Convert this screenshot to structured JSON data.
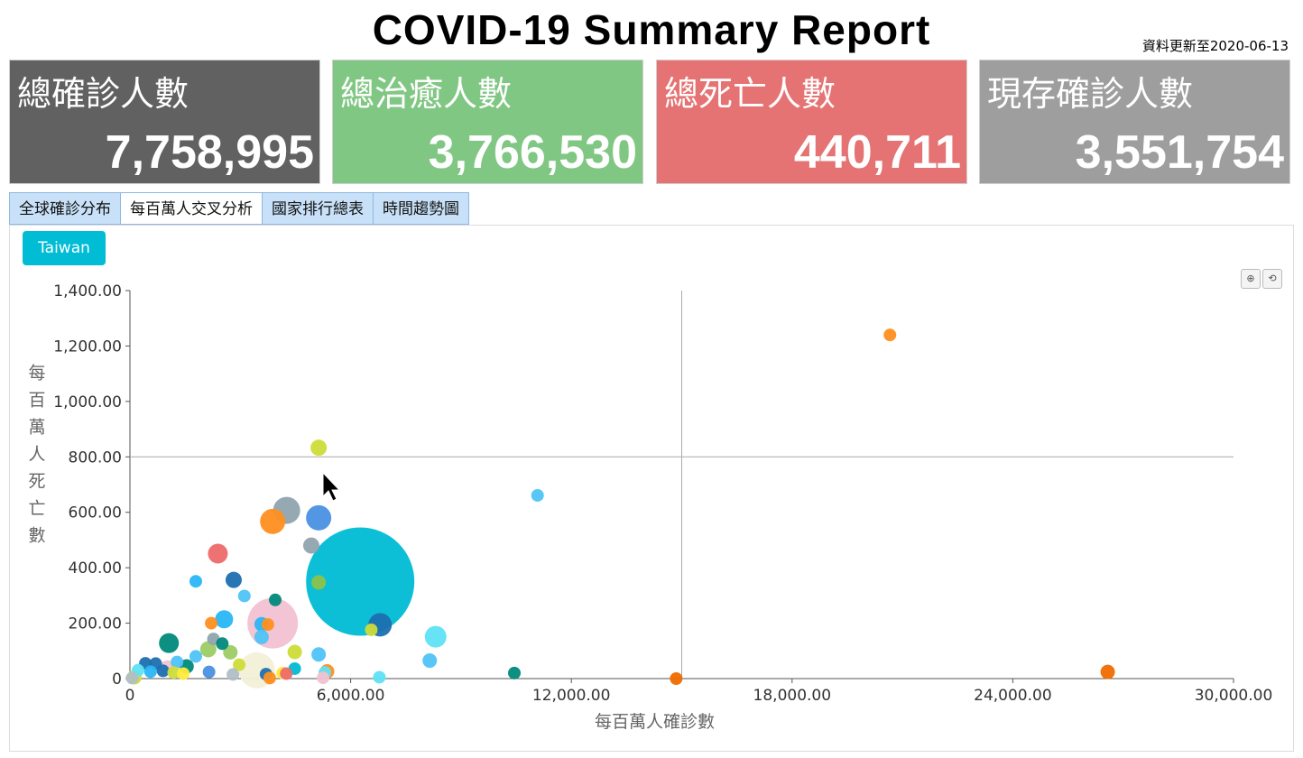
{
  "header": {
    "title": "COVID-19 Summary Report",
    "updated": "資料更新至2020-06-13"
  },
  "cards": [
    {
      "label": "總確診人數",
      "value": "7,758,995",
      "color": "#616161"
    },
    {
      "label": "總治癒人數",
      "value": "3,766,530",
      "color": "#81c784"
    },
    {
      "label": "總死亡人數",
      "value": "440,711",
      "color": "#e57373"
    },
    {
      "label": "現存確診人數",
      "value": "3,551,754",
      "color": "#9e9e9e"
    }
  ],
  "tabs": [
    "全球確診分布",
    "每百萬人交叉分析",
    "國家排行總表",
    "時間趨勢圖"
  ],
  "active_tab": 1,
  "panel": {
    "country_button": "Taiwan",
    "zoom_icons": [
      "zoom-in-icon",
      "zoom-reset-icon"
    ]
  },
  "chart_data": {
    "type": "scatter",
    "xlabel": "每百萬人確診數",
    "ylabel": "每百萬人死亡數",
    "xlim": [
      0,
      30000
    ],
    "ylim": [
      0,
      1400
    ],
    "xticks": [
      0,
      6000,
      12000,
      18000,
      24000,
      30000
    ],
    "xtick_labels": [
      "0",
      "6,000.00",
      "12,000.00",
      "18,000.00",
      "24,000.00",
      "30,000.00"
    ],
    "yticks": [
      0,
      200,
      400,
      600,
      800,
      1000,
      1200,
      1400
    ],
    "ytick_labels": [
      "0",
      "200.00",
      "400.00",
      "600.00",
      "800.00",
      "1,000.00",
      "1,200.00",
      "1,400.00"
    ],
    "reference_lines": {
      "x": 15000,
      "y": 800
    },
    "points": [
      {
        "x": 6260,
        "y": 350,
        "size": 60,
        "color": "#00bcd4"
      },
      {
        "x": 3880,
        "y": 200,
        "size": 28,
        "color": "#f2c1d1"
      },
      {
        "x": 3450,
        "y": 30,
        "size": 20,
        "color": "#f3f0d8"
      },
      {
        "x": 20660,
        "y": 1240,
        "size": 7,
        "color": "#ff8f1f"
      },
      {
        "x": 5130,
        "y": 833,
        "size": 9,
        "color": "#cddc39"
      },
      {
        "x": 11080,
        "y": 661,
        "size": 7,
        "color": "#4fc3f7"
      },
      {
        "x": 4260,
        "y": 607,
        "size": 15,
        "color": "#90a4ae"
      },
      {
        "x": 3880,
        "y": 567,
        "size": 14,
        "color": "#ff8f1f"
      },
      {
        "x": 5130,
        "y": 580,
        "size": 14,
        "color": "#4a90e2"
      },
      {
        "x": 4930,
        "y": 480,
        "size": 9,
        "color": "#90a4ae"
      },
      {
        "x": 2390,
        "y": 451,
        "size": 11,
        "color": "#ee6a6a"
      },
      {
        "x": 1790,
        "y": 351,
        "size": 7,
        "color": "#29b6f6"
      },
      {
        "x": 2820,
        "y": 356,
        "size": 9,
        "color": "#1e6fb0"
      },
      {
        "x": 5130,
        "y": 347,
        "size": 8,
        "color": "#8bc34a"
      },
      {
        "x": 3110,
        "y": 298,
        "size": 7,
        "color": "#4fc3f7"
      },
      {
        "x": 3950,
        "y": 284,
        "size": 7,
        "color": "#00897b"
      },
      {
        "x": 2560,
        "y": 214,
        "size": 10,
        "color": "#29b6f6"
      },
      {
        "x": 2210,
        "y": 200,
        "size": 7,
        "color": "#ff8f1f"
      },
      {
        "x": 3580,
        "y": 196,
        "size": 8,
        "color": "#29b6f6"
      },
      {
        "x": 3750,
        "y": 195,
        "size": 7,
        "color": "#ff8f1f"
      },
      {
        "x": 6800,
        "y": 194,
        "size": 13,
        "color": "#1e6fb0"
      },
      {
        "x": 6560,
        "y": 176,
        "size": 7,
        "color": "#cddc39"
      },
      {
        "x": 8310,
        "y": 151,
        "size": 12,
        "color": "#5ee3f5"
      },
      {
        "x": 3580,
        "y": 150,
        "size": 8,
        "color": "#4fc3f7"
      },
      {
        "x": 1060,
        "y": 128,
        "size": 11,
        "color": "#00897b"
      },
      {
        "x": 2270,
        "y": 143,
        "size": 7,
        "color": "#90a4ae"
      },
      {
        "x": 2510,
        "y": 126,
        "size": 7,
        "color": "#00897b"
      },
      {
        "x": 2130,
        "y": 106,
        "size": 9,
        "color": "#9ccc65"
      },
      {
        "x": 2730,
        "y": 95,
        "size": 8,
        "color": "#9ccc65"
      },
      {
        "x": 4480,
        "y": 96,
        "size": 8,
        "color": "#cddc39"
      },
      {
        "x": 5130,
        "y": 87,
        "size": 8,
        "color": "#4fc3f7"
      },
      {
        "x": 1790,
        "y": 80,
        "size": 7,
        "color": "#4fc3f7"
      },
      {
        "x": 8150,
        "y": 65,
        "size": 8,
        "color": "#4fc3f7"
      },
      {
        "x": 1280,
        "y": 60,
        "size": 7,
        "color": "#4fc3f7"
      },
      {
        "x": 2970,
        "y": 50,
        "size": 7,
        "color": "#cddc39"
      },
      {
        "x": 420,
        "y": 55,
        "size": 7,
        "color": "#1e6fb0"
      },
      {
        "x": 700,
        "y": 54,
        "size": 7,
        "color": "#1e6fb0"
      },
      {
        "x": 1540,
        "y": 44,
        "size": 8,
        "color": "#00897b"
      },
      {
        "x": 1020,
        "y": 40,
        "size": 8,
        "color": "#f2c1d1"
      },
      {
        "x": 4480,
        "y": 36,
        "size": 7,
        "color": "#00bcd4"
      },
      {
        "x": 5360,
        "y": 26,
        "size": 8,
        "color": "#ff8f1f"
      },
      {
        "x": 5300,
        "y": 22,
        "size": 7,
        "color": "#5ee3f5"
      },
      {
        "x": 220,
        "y": 30,
        "size": 7,
        "color": "#5ee3f5"
      },
      {
        "x": 560,
        "y": 25,
        "size": 7,
        "color": "#29b6f6"
      },
      {
        "x": 900,
        "y": 28,
        "size": 7,
        "color": "#1e6fb0"
      },
      {
        "x": 1190,
        "y": 22,
        "size": 7,
        "color": "#cddc39"
      },
      {
        "x": 1450,
        "y": 18,
        "size": 7,
        "color": "#ffeb3b"
      },
      {
        "x": 2150,
        "y": 24,
        "size": 7,
        "color": "#4a90e2"
      },
      {
        "x": 2800,
        "y": 15,
        "size": 7,
        "color": "#b0bec5"
      },
      {
        "x": 3700,
        "y": 16,
        "size": 7,
        "color": "#1e6fb0"
      },
      {
        "x": 4150,
        "y": 20,
        "size": 7,
        "color": "#ffeb3b"
      },
      {
        "x": 4250,
        "y": 18,
        "size": 7,
        "color": "#ee6a6a"
      },
      {
        "x": 10450,
        "y": 20,
        "size": 7,
        "color": "#00897b"
      },
      {
        "x": 26580,
        "y": 24,
        "size": 8,
        "color": "#ef6c00"
      },
      {
        "x": 14850,
        "y": 0,
        "size": 7,
        "color": "#ef6c00"
      },
      {
        "x": 6780,
        "y": 5,
        "size": 7,
        "color": "#5ee3f5"
      },
      {
        "x": 5250,
        "y": 3,
        "size": 7,
        "color": "#f2c1d1"
      },
      {
        "x": 3800,
        "y": 2,
        "size": 7,
        "color": "#ff8f1f"
      },
      {
        "x": 120,
        "y": 5,
        "size": 8,
        "color": "#cddc39"
      },
      {
        "x": 60,
        "y": 2,
        "size": 7,
        "color": "#b0bec5"
      }
    ]
  }
}
